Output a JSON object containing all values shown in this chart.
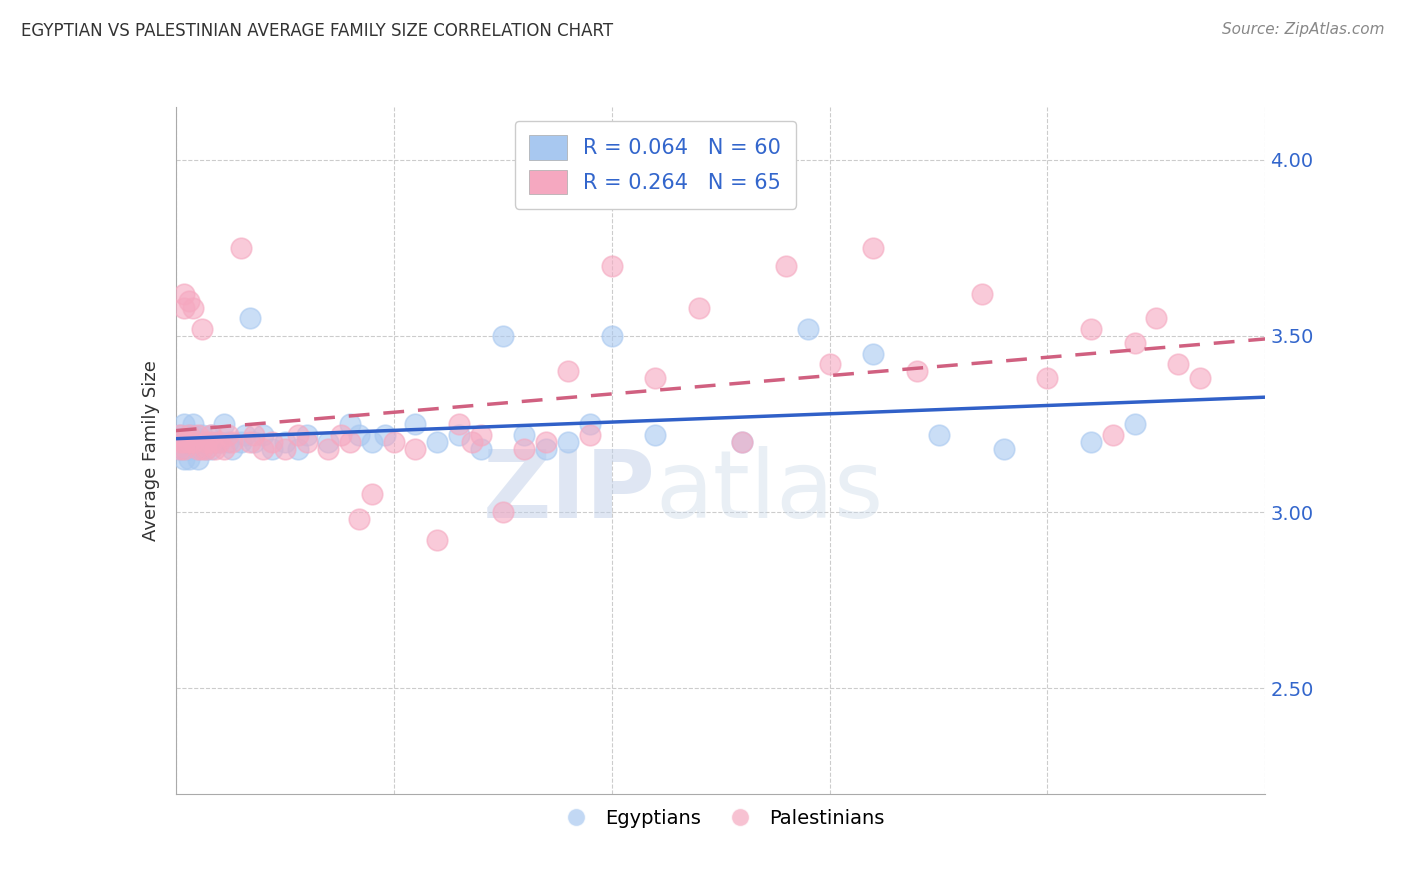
{
  "title": "EGYPTIAN VS PALESTINIAN AVERAGE FAMILY SIZE CORRELATION CHART",
  "source": "Source: ZipAtlas.com",
  "ylabel": "Average Family Size",
  "ylim": [
    2.2,
    4.15
  ],
  "xlim": [
    0.0,
    0.25
  ],
  "yticks": [
    2.5,
    3.0,
    3.5,
    4.0
  ],
  "xticks": [
    0.0,
    0.05,
    0.1,
    0.15,
    0.2,
    0.25
  ],
  "legend_label_blue": "Egyptians",
  "legend_label_pink": "Palestinians",
  "watermark_zip": "ZIP",
  "watermark_atlas": "atlas",
  "blue_color": "#a8c8f0",
  "pink_color": "#f5a8c0",
  "blue_line_color": "#3060c8",
  "pink_line_color": "#d06080",
  "pink_line_dash": true,
  "legend_blue_text": "R = 0.064   N = 60",
  "legend_pink_text": "R = 0.264   N = 65",
  "egyptians_x": [
    0.001,
    0.001,
    0.001,
    0.002,
    0.002,
    0.002,
    0.002,
    0.003,
    0.003,
    0.003,
    0.003,
    0.004,
    0.004,
    0.004,
    0.005,
    0.005,
    0.005,
    0.006,
    0.006,
    0.007,
    0.007,
    0.008,
    0.008,
    0.009,
    0.01,
    0.011,
    0.012,
    0.013,
    0.015,
    0.016,
    0.017,
    0.018,
    0.02,
    0.022,
    0.025,
    0.028,
    0.03,
    0.035,
    0.04,
    0.042,
    0.045,
    0.048,
    0.055,
    0.06,
    0.065,
    0.07,
    0.075,
    0.08,
    0.085,
    0.09,
    0.095,
    0.1,
    0.11,
    0.13,
    0.145,
    0.16,
    0.175,
    0.19,
    0.21,
    0.22
  ],
  "egyptians_y": [
    3.2,
    3.18,
    3.22,
    3.15,
    3.2,
    3.25,
    3.18,
    3.2,
    3.22,
    3.15,
    3.18,
    3.2,
    3.22,
    3.25,
    3.18,
    3.2,
    3.15,
    3.2,
    3.22,
    3.18,
    3.2,
    3.22,
    3.18,
    3.2,
    3.2,
    3.25,
    3.2,
    3.18,
    3.2,
    3.22,
    3.55,
    3.2,
    3.22,
    3.18,
    3.2,
    3.18,
    3.22,
    3.2,
    3.25,
    3.22,
    3.2,
    3.22,
    3.25,
    3.2,
    3.22,
    3.18,
    3.5,
    3.22,
    3.18,
    3.2,
    3.25,
    3.5,
    3.22,
    3.2,
    3.52,
    3.45,
    3.22,
    3.18,
    3.2,
    3.25
  ],
  "palestinians_x": [
    0.001,
    0.001,
    0.001,
    0.002,
    0.002,
    0.002,
    0.002,
    0.003,
    0.003,
    0.003,
    0.004,
    0.004,
    0.005,
    0.005,
    0.006,
    0.006,
    0.007,
    0.007,
    0.008,
    0.008,
    0.009,
    0.01,
    0.011,
    0.012,
    0.013,
    0.015,
    0.017,
    0.018,
    0.02,
    0.022,
    0.025,
    0.028,
    0.03,
    0.035,
    0.038,
    0.04,
    0.042,
    0.045,
    0.05,
    0.055,
    0.06,
    0.065,
    0.068,
    0.07,
    0.075,
    0.08,
    0.085,
    0.09,
    0.095,
    0.1,
    0.11,
    0.12,
    0.13,
    0.14,
    0.15,
    0.16,
    0.17,
    0.185,
    0.2,
    0.21,
    0.215,
    0.22,
    0.225,
    0.23,
    0.235
  ],
  "palestinians_y": [
    3.18,
    3.2,
    3.22,
    3.58,
    3.62,
    3.2,
    3.18,
    3.2,
    3.22,
    3.6,
    3.58,
    3.2,
    3.18,
    3.22,
    3.18,
    3.52,
    3.2,
    3.18,
    3.2,
    3.22,
    3.18,
    3.2,
    3.18,
    3.22,
    3.2,
    3.75,
    3.2,
    3.22,
    3.18,
    3.2,
    3.18,
    3.22,
    3.2,
    3.18,
    3.22,
    3.2,
    2.98,
    3.05,
    3.2,
    3.18,
    2.92,
    3.25,
    3.2,
    3.22,
    3.0,
    3.18,
    3.2,
    3.4,
    3.22,
    3.7,
    3.38,
    3.58,
    3.2,
    3.7,
    3.42,
    3.75,
    3.4,
    3.62,
    3.38,
    3.52,
    3.22,
    3.48,
    3.55,
    3.42,
    3.38
  ]
}
